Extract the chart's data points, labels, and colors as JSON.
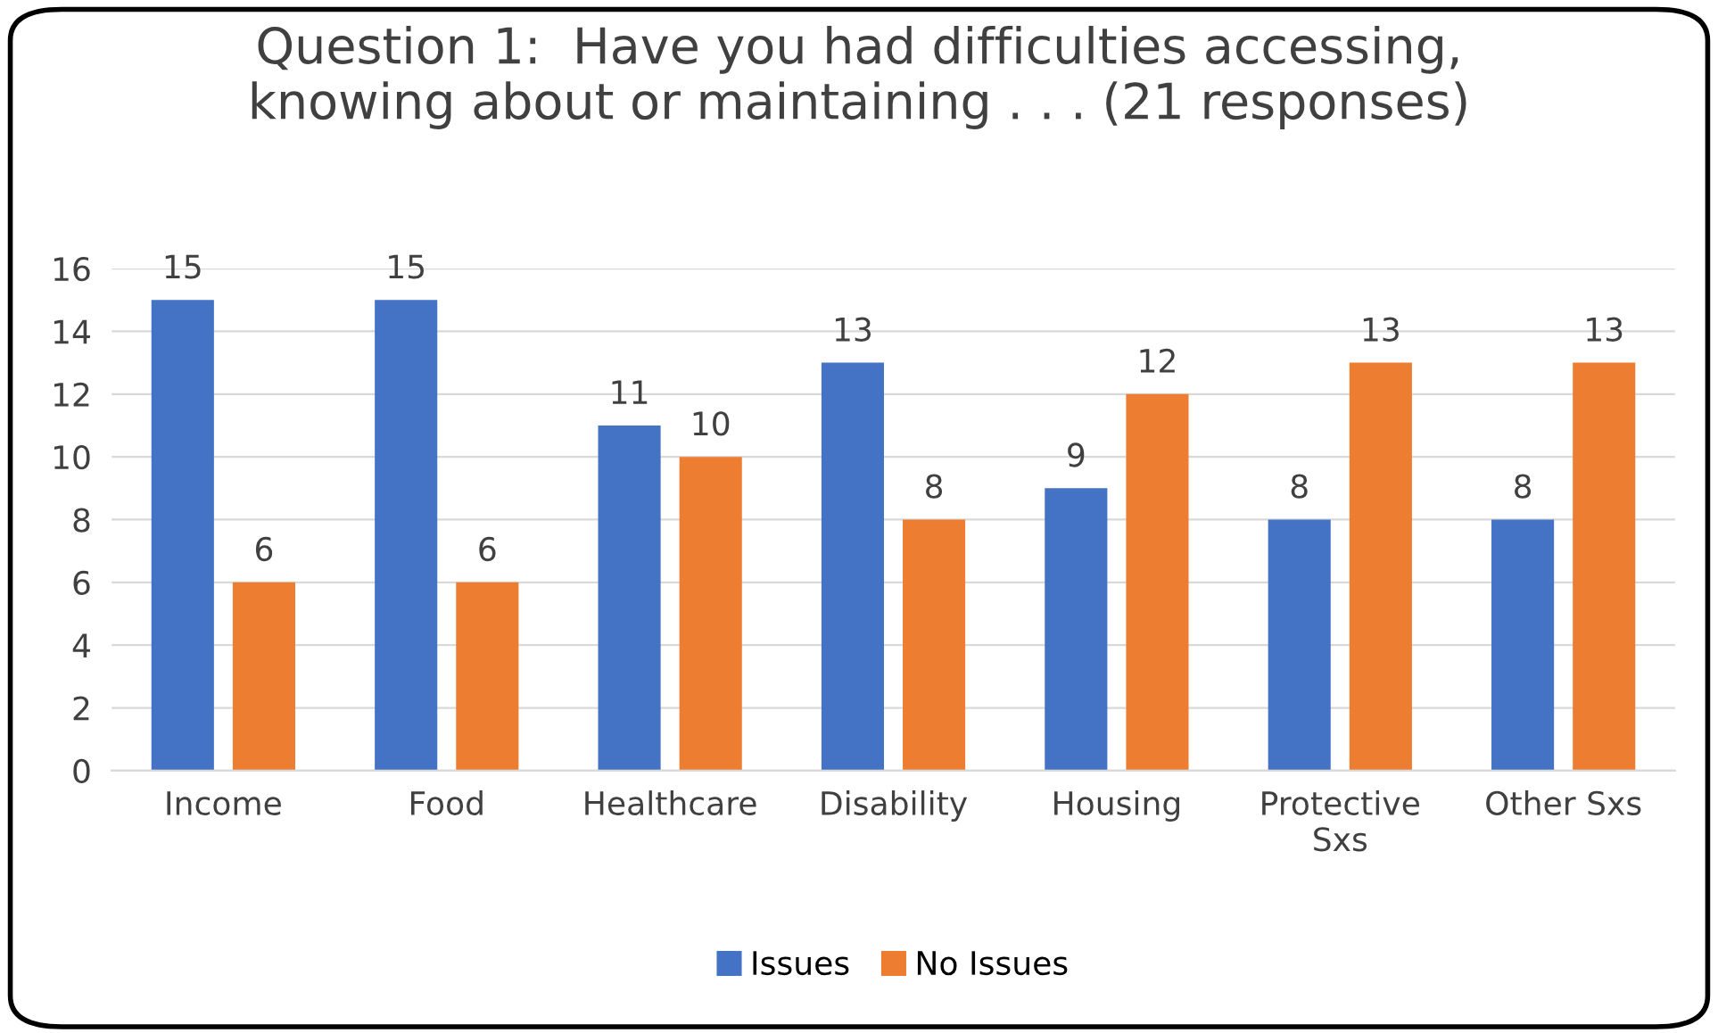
{
  "chart_data": {
    "type": "bar",
    "title": "Question 1:  Have you had difficulties accessing,\nknowing about or maintaining . . . (21 responses)",
    "categories": [
      "Income",
      "Food",
      "Healthcare",
      "Disability",
      "Housing",
      "Protective\nSxs",
      "Other Sxs"
    ],
    "series": [
      {
        "name": "Issues",
        "color": "#4472c4",
        "values": [
          15,
          15,
          11,
          13,
          9,
          8,
          8
        ]
      },
      {
        "name": "No Issues",
        "color": "#ed7d31",
        "values": [
          6,
          6,
          10,
          8,
          12,
          13,
          13
        ]
      }
    ],
    "ylim": [
      0,
      16
    ],
    "yticks": [
      0,
      2,
      4,
      6,
      8,
      10,
      12,
      14,
      16
    ],
    "grid": "y",
    "legend": "bottom",
    "data_labels": true
  }
}
